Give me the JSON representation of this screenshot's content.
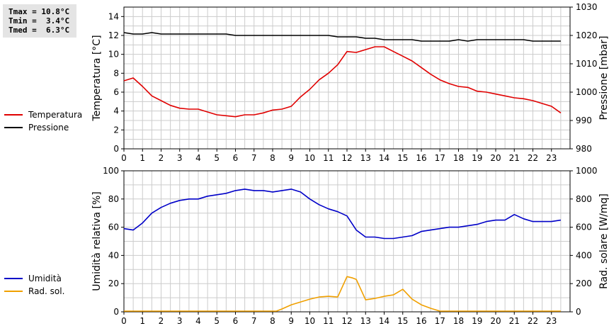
{
  "stats": {
    "tmax": "Tmax = 10.8°C",
    "tmin": "Tmin =  3.4°C",
    "tmed": "Tmed =  6.3°C"
  },
  "colors": {
    "temperature": "#e00000",
    "pressure": "#000000",
    "humidity": "#0000c8",
    "solar": "#f0a000",
    "grid": "#cccccc"
  },
  "chart_data": [
    {
      "type": "line",
      "xlabel": "",
      "ylabel": "Temperatura [°C]",
      "y2label": "Pressione [mbar]",
      "xlim": [
        0,
        24
      ],
      "ylim": [
        0,
        15
      ],
      "y2lim": [
        980,
        1030
      ],
      "xticks": [
        "0",
        "1",
        "2",
        "3",
        "4",
        "5",
        "6",
        "7",
        "8",
        "9",
        "10",
        "11",
        "12",
        "13",
        "14",
        "15",
        "16",
        "17",
        "18",
        "19",
        "20",
        "21",
        "22",
        "23"
      ],
      "yticks": [
        "0",
        "2",
        "4",
        "6",
        "8",
        "10",
        "12",
        "14"
      ],
      "y2ticks": [
        "980",
        "990",
        "1000",
        "1010",
        "1020",
        "1030"
      ],
      "grid": true,
      "legend_position": "left",
      "series": [
        {
          "name": "Temperatura",
          "axis": "left",
          "x": [
            0,
            0.5,
            1,
            1.5,
            2,
            2.5,
            3,
            3.5,
            4,
            4.5,
            5,
            5.5,
            6,
            6.5,
            7,
            7.5,
            8,
            8.5,
            9,
            9.5,
            10,
            10.5,
            11,
            11.5,
            12,
            12.5,
            13,
            13.5,
            14,
            14.5,
            15,
            15.5,
            16,
            16.5,
            17,
            17.5,
            18,
            18.5,
            19,
            19.5,
            20,
            20.5,
            21,
            21.5,
            22,
            22.5,
            23,
            23.5
          ],
          "values": [
            7.2,
            7.5,
            6.6,
            5.6,
            5.1,
            4.6,
            4.3,
            4.2,
            4.2,
            3.9,
            3.6,
            3.5,
            3.4,
            3.6,
            3.6,
            3.8,
            4.1,
            4.2,
            4.5,
            5.5,
            6.3,
            7.3,
            8.0,
            8.9,
            10.3,
            10.2,
            10.5,
            10.8,
            10.8,
            10.3,
            9.8,
            9.3,
            8.6,
            7.9,
            7.3,
            6.9,
            6.6,
            6.5,
            6.1,
            6.0,
            5.8,
            5.6,
            5.4,
            5.3,
            5.1,
            4.8,
            4.5,
            3.8
          ]
        },
        {
          "name": "Pressione",
          "axis": "right",
          "x": [
            0,
            0.5,
            1,
            1.5,
            2,
            2.5,
            3,
            3.5,
            4,
            4.5,
            5,
            5.5,
            6,
            6.5,
            7,
            7.5,
            8,
            8.5,
            9,
            9.5,
            10,
            10.5,
            11,
            11.5,
            12,
            12.5,
            13,
            13.5,
            14,
            14.5,
            15,
            15.5,
            16,
            16.5,
            17,
            17.5,
            18,
            18.5,
            19,
            19.5,
            20,
            20.5,
            21,
            21.5,
            22,
            22.5,
            23,
            23.5
          ],
          "values": [
            1021,
            1020.5,
            1020.5,
            1021,
            1020.5,
            1020.5,
            1020.5,
            1020.5,
            1020.5,
            1020.5,
            1020.5,
            1020.5,
            1020,
            1020,
            1020,
            1020,
            1020,
            1020,
            1020,
            1020,
            1020,
            1020,
            1020,
            1019.5,
            1019.5,
            1019.5,
            1019,
            1019,
            1018.5,
            1018.5,
            1018.5,
            1018.5,
            1018,
            1018,
            1018,
            1018,
            1018.5,
            1018,
            1018.5,
            1018.5,
            1018.5,
            1018.5,
            1018.5,
            1018.5,
            1018,
            1018,
            1018,
            1018
          ]
        }
      ]
    },
    {
      "type": "line",
      "xlabel": "",
      "ylabel": "Umidità relativa [%]",
      "y2label": "Rad. solare [W/mq]",
      "xlim": [
        0,
        24
      ],
      "ylim": [
        0,
        100
      ],
      "y2lim": [
        0,
        1000
      ],
      "xticks": [
        "0",
        "1",
        "2",
        "3",
        "4",
        "5",
        "6",
        "7",
        "8",
        "9",
        "10",
        "11",
        "12",
        "13",
        "14",
        "15",
        "16",
        "17",
        "18",
        "19",
        "20",
        "21",
        "22",
        "23"
      ],
      "yticks": [
        "0",
        "20",
        "40",
        "60",
        "80",
        "100"
      ],
      "y2ticks": [
        "0",
        "200",
        "400",
        "600",
        "800",
        "1000"
      ],
      "grid": true,
      "legend_position": "left",
      "series": [
        {
          "name": "Umidità",
          "axis": "left",
          "x": [
            0,
            0.5,
            1,
            1.5,
            2,
            2.5,
            3,
            3.5,
            4,
            4.5,
            5,
            5.5,
            6,
            6.5,
            7,
            7.5,
            8,
            8.5,
            9,
            9.5,
            10,
            10.5,
            11,
            11.5,
            12,
            12.5,
            13,
            13.5,
            14,
            14.5,
            15,
            15.5,
            16,
            16.5,
            17,
            17.5,
            18,
            18.5,
            19,
            19.5,
            20,
            20.5,
            21,
            21.5,
            22,
            22.5,
            23,
            23.5
          ],
          "values": [
            59,
            58,
            63,
            70,
            74,
            77,
            79,
            80,
            80,
            82,
            83,
            84,
            86,
            87,
            86,
            86,
            85,
            86,
            87,
            85,
            80,
            76,
            73,
            71,
            68,
            58,
            53,
            53,
            52,
            52,
            53,
            54,
            57,
            58,
            59,
            60,
            60,
            61,
            62,
            64,
            65,
            65,
            69,
            66,
            64,
            64,
            64,
            65
          ]
        },
        {
          "name": "Rad. sol.",
          "axis": "right",
          "x": [
            0,
            0.5,
            1,
            1.5,
            2,
            2.5,
            3,
            3.5,
            4,
            4.5,
            5,
            5.5,
            6,
            6.5,
            7,
            7.5,
            8,
            8.2,
            8.5,
            9,
            9.5,
            10,
            10.5,
            11,
            11.5,
            12,
            12.3,
            12.5,
            13,
            13.5,
            14,
            14.5,
            15,
            15.5,
            16,
            16.5,
            17,
            17.5,
            18,
            18.5,
            19,
            19.5,
            20,
            20.5,
            21,
            21.5,
            22,
            22.5,
            23,
            23.5
          ],
          "values": [
            5,
            5,
            5,
            5,
            5,
            5,
            5,
            5,
            5,
            5,
            5,
            5,
            5,
            5,
            5,
            5,
            5,
            5,
            20,
            50,
            70,
            90,
            105,
            110,
            105,
            250,
            240,
            230,
            85,
            95,
            110,
            120,
            160,
            90,
            50,
            25,
            5,
            5,
            5,
            5,
            5,
            5,
            5,
            5,
            5,
            5,
            5,
            5,
            5,
            5
          ]
        }
      ]
    }
  ]
}
